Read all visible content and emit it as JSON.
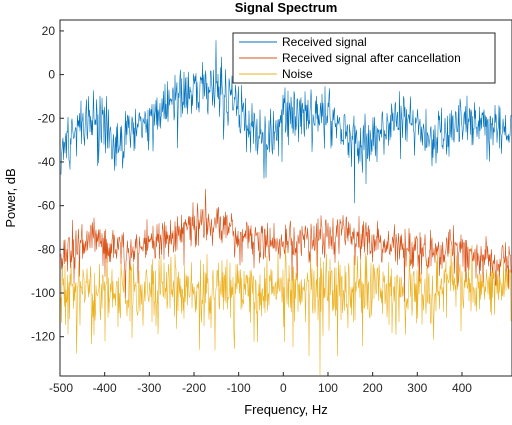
{
  "chart_data": {
    "type": "line",
    "title": "Signal Spectrum",
    "xlabel": "Frequency, Hz",
    "ylabel": "Power, dB",
    "xlim": [
      -500,
      512
    ],
    "ylim": [
      -138,
      25
    ],
    "xticks": [
      -500,
      -400,
      -300,
      -200,
      -100,
      0,
      100,
      200,
      300,
      400
    ],
    "yticks": [
      20,
      0,
      -20,
      -40,
      -60,
      -80,
      -100,
      -120
    ],
    "grid": false,
    "legend": {
      "location": "top-right"
    },
    "series": [
      {
        "name": "Received signal",
        "color": "#0072BD",
        "noise_spread_db": 9,
        "envelope": {
          "x": [
            -500,
            -460,
            -430,
            -400,
            -380,
            -350,
            -300,
            -250,
            -200,
            -170,
            -150,
            -130,
            -100,
            -70,
            -40,
            -20,
            0,
            30,
            70,
            100,
            130,
            170,
            200,
            240,
            270,
            300,
            330,
            360,
            400,
            440,
            470,
            512
          ],
          "y": [
            -32,
            -28,
            -20,
            -20,
            -33,
            -26,
            -19,
            -13,
            -8,
            -6,
            -5,
            -8,
            -15,
            -25,
            -28,
            -30,
            -20,
            -18,
            -18,
            -20,
            -25,
            -30,
            -32,
            -22,
            -20,
            -22,
            -30,
            -28,
            -22,
            -22,
            -25,
            -24
          ]
        }
      },
      {
        "name": "Received signal after cancellation",
        "color": "#D95319",
        "noise_spread_db": 7,
        "envelope": {
          "x": [
            -500,
            -460,
            -420,
            -380,
            -350,
            -300,
            -250,
            -200,
            -150,
            -120,
            -100,
            -60,
            -30,
            0,
            50,
            100,
            130,
            170,
            200,
            250,
            300,
            350,
            400,
            450,
            512
          ],
          "y": [
            -84,
            -78,
            -74,
            -80,
            -82,
            -76,
            -74,
            -70,
            -68,
            -70,
            -74,
            -76,
            -78,
            -76,
            -76,
            -74,
            -72,
            -74,
            -76,
            -78,
            -80,
            -82,
            -80,
            -84,
            -84
          ]
        }
      },
      {
        "name": "Noise",
        "color": "#EDB120",
        "noise_spread_db": 11,
        "envelope": {
          "x": [
            -500,
            512
          ],
          "y": [
            -98,
            -98
          ]
        }
      }
    ]
  }
}
